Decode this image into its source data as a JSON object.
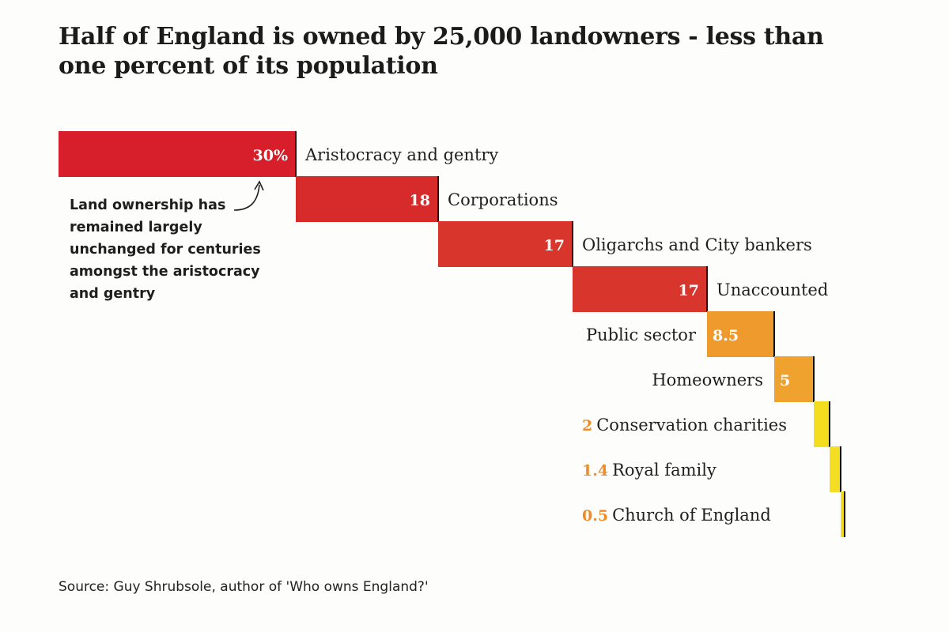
{
  "title": {
    "line1": "Half of England is owned by 25,000 landowners - less than",
    "line2": "one percent of its population"
  },
  "annotation": {
    "lines": [
      "Land ownership has",
      "remained largely",
      "unchanged for centuries",
      "amongst the aristocracy",
      "and gentry"
    ]
  },
  "source": "Source: Guy Shrubsole, author of 'Who owns England?'",
  "chart_data": {
    "type": "bar",
    "subtype": "waterfall",
    "title": "Half of England is owned by 25,000 landowners - less than one percent of its population",
    "unit": "%",
    "categories": [
      "Aristocracy and gentry",
      "Corporations",
      "Oligarchs and City bankers",
      "Unaccounted",
      "Public sector",
      "Homeowners",
      "Conservation charities",
      "Royal family",
      "Church of England"
    ],
    "values": [
      30,
      18,
      17,
      17,
      8.5,
      5,
      2,
      1.4,
      0.5
    ],
    "value_labels": [
      "30%",
      "18",
      "17",
      "17",
      "8.5",
      "5",
      "2",
      "1.4",
      "0.5"
    ],
    "colors": [
      "#d71f2b",
      "#d72a2a",
      "#d8362c",
      "#d8362c",
      "#ef9a2d",
      "#f0a22e",
      "#f3dd1f",
      "#f4de24",
      "#f2dc22"
    ],
    "label_color_small": "#ec8d2a",
    "label_color_inside": "#ffffff",
    "label_color_category": "#1f1f1f"
  }
}
